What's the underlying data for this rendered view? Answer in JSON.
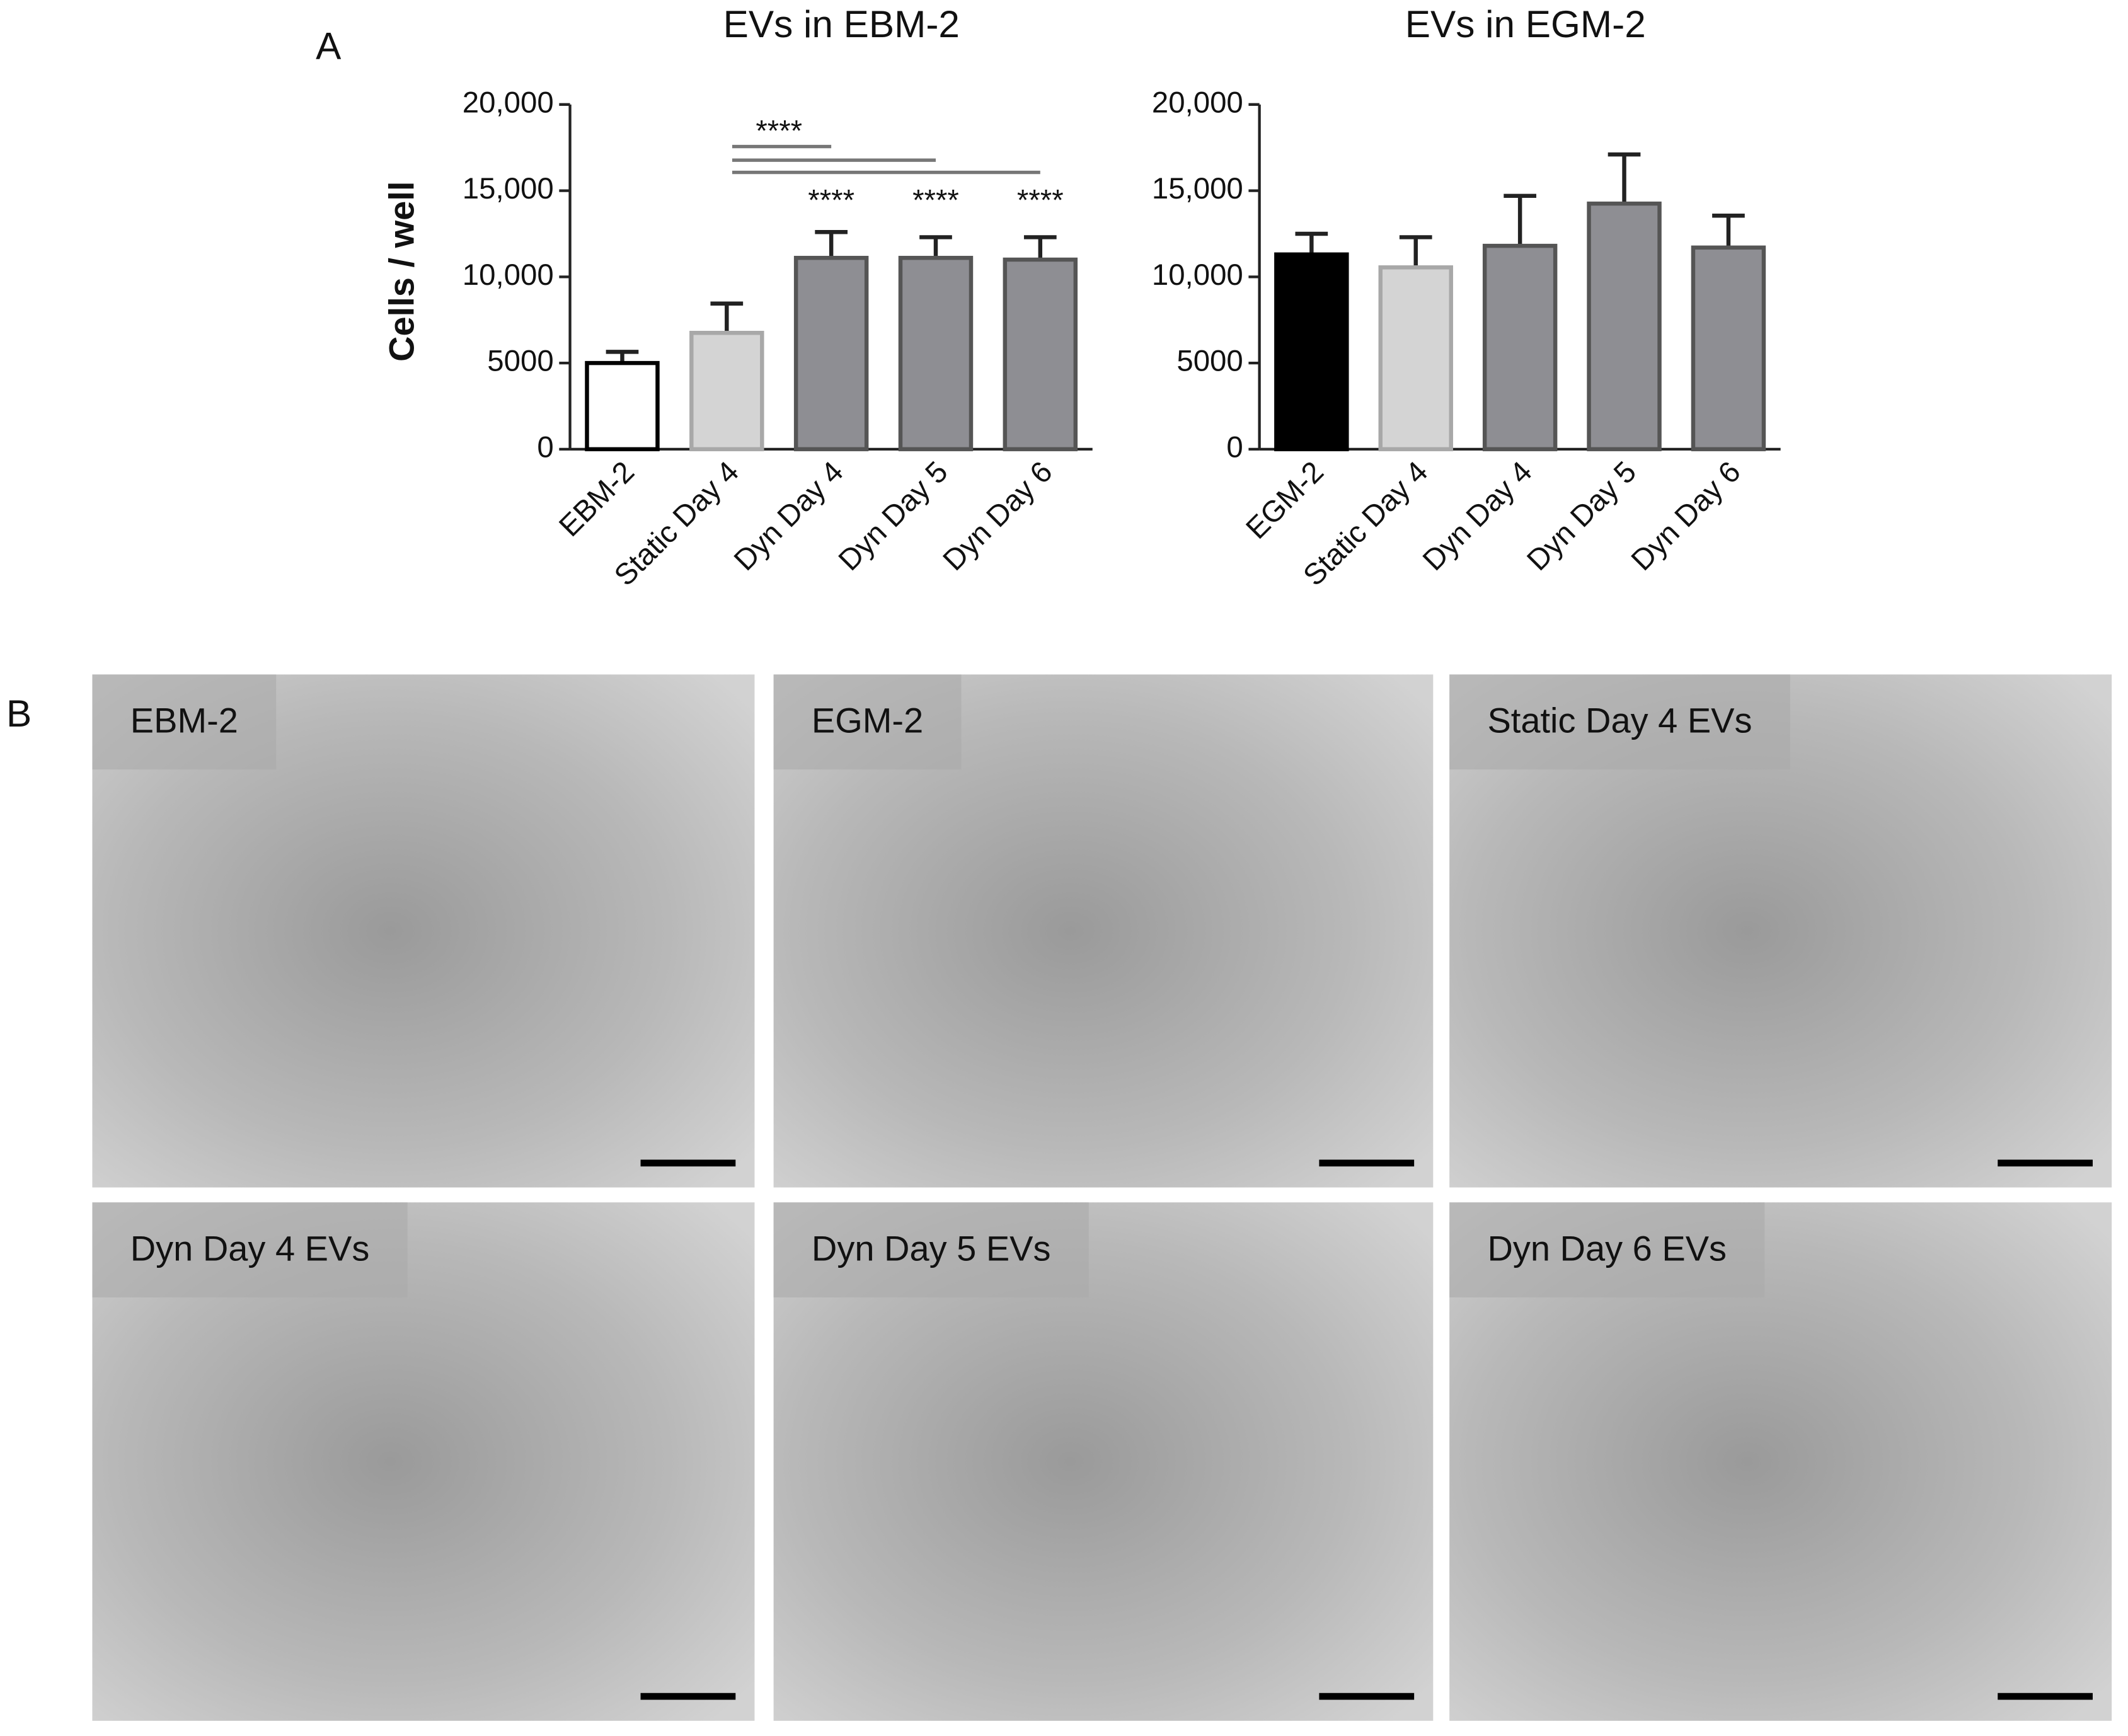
{
  "panel_labels": [
    "A",
    "B"
  ],
  "chart_data": [
    {
      "type": "bar",
      "title": "EVs in EBM-2",
      "y_label": "Cells / well",
      "categories": [
        "EBM-2",
        "Static Day 4",
        "Dyn Day 4",
        "Dyn Day 5",
        "Dyn Day 6"
      ],
      "values": [
        5000,
        6750,
        11100,
        11100,
        11000
      ],
      "errors": [
        650,
        1700,
        1500,
        1200,
        1300
      ],
      "colors": [
        "#ffffff",
        "#d4d4d4",
        "#8e8e93",
        "#8e8e93",
        "#8e8e93"
      ],
      "ylim": [
        0,
        20000
      ],
      "yticks": [
        0,
        5000,
        {
          "value": 10000,
          "label": "10,000"
        },
        {
          "value": 15000,
          "label": "15,000"
        },
        {
          "value": 20000,
          "label": "20,000"
        }
      ],
      "annotations": [
        "****",
        "****",
        "****",
        "****"
      ]
    },
    {
      "type": "bar",
      "title": "EVs in EGM-2",
      "categories": [
        "EGM-2",
        "Static Day 4",
        "Dyn Day 4",
        "Dyn Day 5",
        "Dyn Day 6"
      ],
      "values": [
        11300,
        10550,
        11800,
        14250,
        11700
      ],
      "errors": [
        1200,
        1750,
        2900,
        2850,
        1850
      ],
      "colors": [
        "#000000",
        "#d4d4d4",
        "#8e8e93",
        "#8e8e93",
        "#8e8e93"
      ],
      "ylim": [
        0,
        20000
      ],
      "yticks": [
        0,
        5000,
        {
          "value": 10000,
          "label": "10,000"
        },
        {
          "value": 15000,
          "label": "15,000"
        },
        {
          "value": 20000,
          "label": "20,000"
        }
      ]
    }
  ],
  "micrographs": [
    "EBM-2",
    "EGM-2",
    "Static Day 4 EVs",
    "Dyn Day 4 EVs",
    "Dyn Day 5 EVs",
    "Dyn Day 6 EVs"
  ]
}
